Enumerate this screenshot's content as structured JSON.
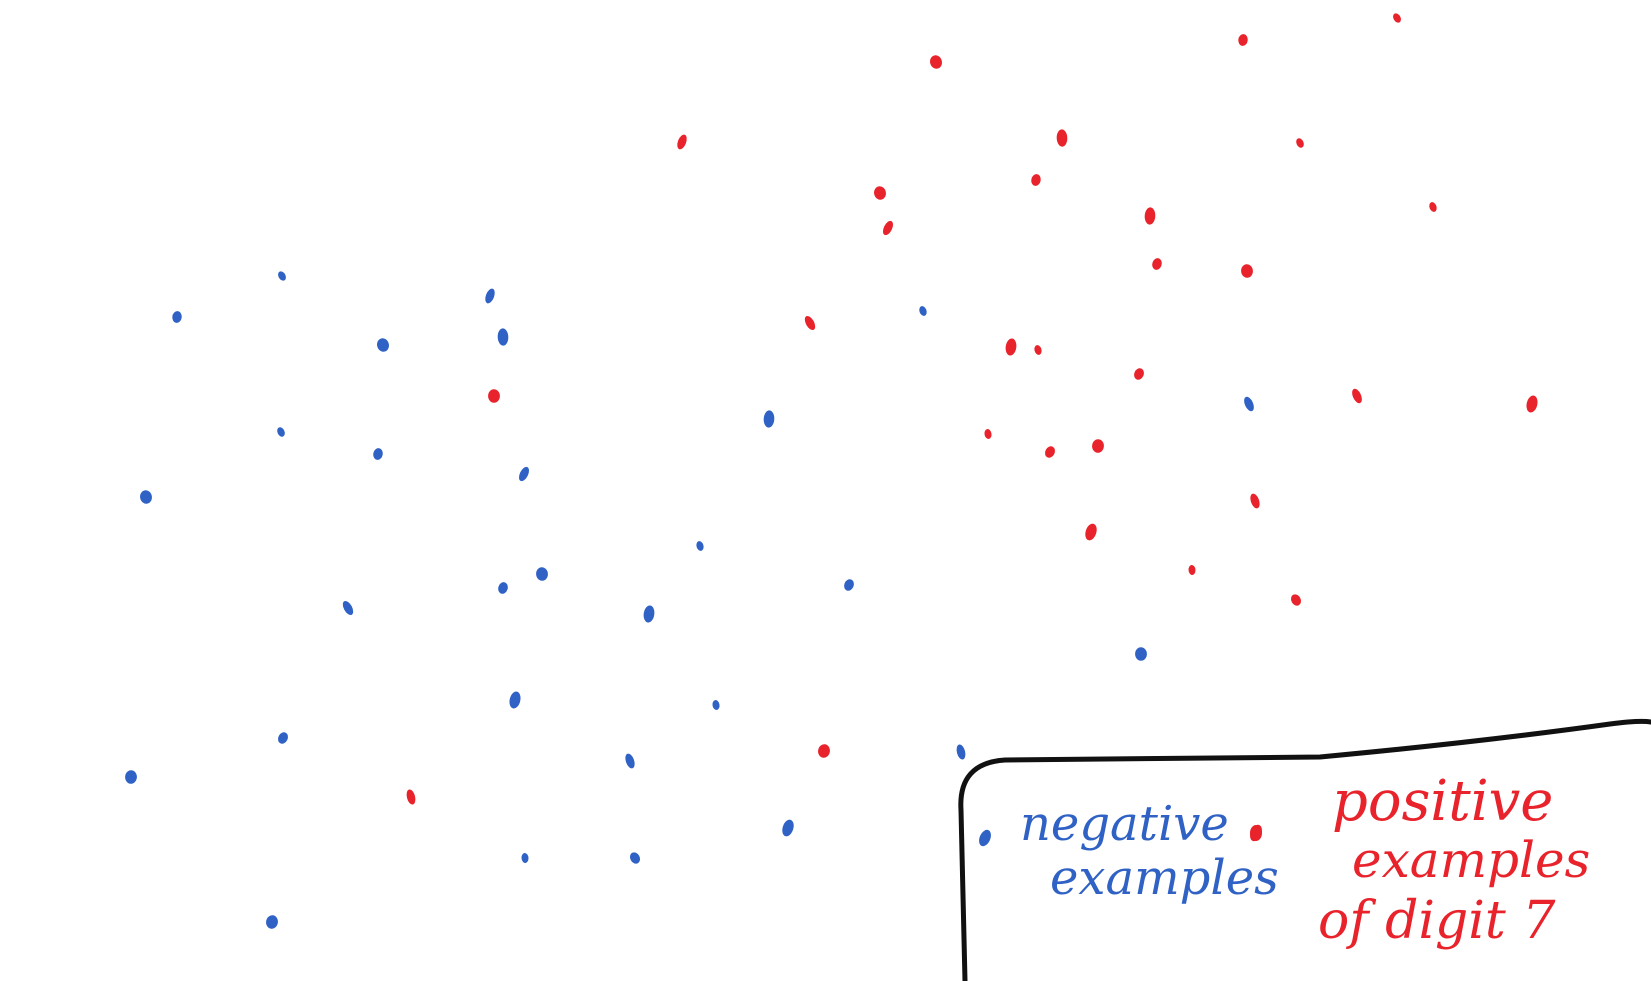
{
  "colors": {
    "negative": "#2f62c4",
    "positive": "#e8232b",
    "box": "#111111",
    "background": "#ffffff"
  },
  "legend": {
    "negative_label_line1": "negative",
    "negative_label_line2": "examples",
    "positive_label_line1": "positive",
    "positive_label_line2": "examples",
    "positive_label_line3": "of digit 7"
  },
  "chart_data": {
    "type": "scatter",
    "series": [
      {
        "name": "negative examples",
        "color": "#2f62c4",
        "points": [
          [
            282,
            276
          ],
          [
            177,
            317
          ],
          [
            383,
            345
          ],
          [
            490,
            296
          ],
          [
            503,
            337
          ],
          [
            281,
            432
          ],
          [
            378,
            454
          ],
          [
            146,
            497
          ],
          [
            524,
            474
          ],
          [
            769,
            419
          ],
          [
            923,
            311
          ],
          [
            503,
            588
          ],
          [
            542,
            574
          ],
          [
            348,
            608
          ],
          [
            649,
            614
          ],
          [
            700,
            546
          ],
          [
            849,
            585
          ],
          [
            1141,
            654
          ],
          [
            1249,
            404
          ],
          [
            515,
            700
          ],
          [
            716,
            705
          ],
          [
            283,
            738
          ],
          [
            131,
            777
          ],
          [
            630,
            761
          ],
          [
            788,
            828
          ],
          [
            525,
            858
          ],
          [
            635,
            858
          ],
          [
            272,
            922
          ],
          [
            961,
            752
          ],
          [
            985,
            838
          ]
        ]
      },
      {
        "name": "positive examples of digit 7",
        "color": "#e8232b",
        "points": [
          [
            1397,
            18
          ],
          [
            1243,
            40
          ],
          [
            936,
            62
          ],
          [
            682,
            142
          ],
          [
            1062,
            138
          ],
          [
            1300,
            143
          ],
          [
            1036,
            180
          ],
          [
            880,
            193
          ],
          [
            888,
            228
          ],
          [
            1150,
            216
          ],
          [
            1433,
            207
          ],
          [
            1157,
            264
          ],
          [
            1247,
            271
          ],
          [
            810,
            323
          ],
          [
            1011,
            347
          ],
          [
            1038,
            350
          ],
          [
            1139,
            374
          ],
          [
            494,
            396
          ],
          [
            1357,
            396
          ],
          [
            1532,
            404
          ],
          [
            988,
            434
          ],
          [
            1050,
            452
          ],
          [
            1098,
            446
          ],
          [
            1255,
            501
          ],
          [
            1091,
            532
          ],
          [
            1192,
            570
          ],
          [
            1296,
            600
          ],
          [
            824,
            751
          ],
          [
            411,
            797
          ],
          [
            1256,
            833
          ]
        ]
      }
    ],
    "xlabel": "",
    "ylabel": "",
    "grid": false,
    "legend_position": "bottom-right"
  }
}
